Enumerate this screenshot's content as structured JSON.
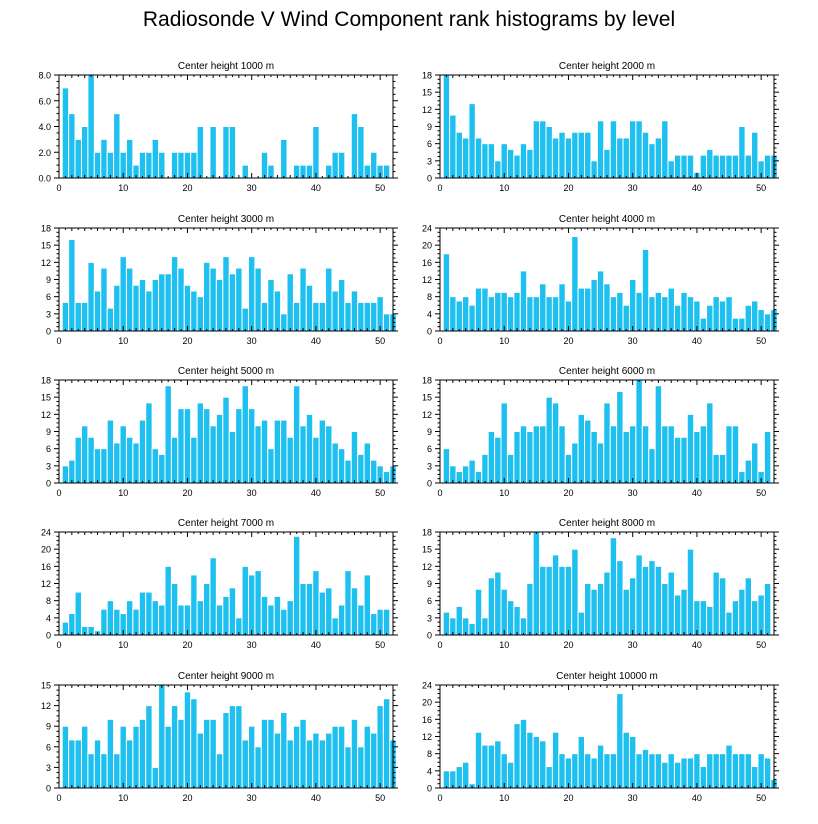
{
  "title": "Radiosonde V Wind Component rank histograms by level",
  "style": {
    "bar_color": "#1ec0f0",
    "bar_outline": "#ffffff",
    "axis_color": "#000000"
  },
  "chart_data": [
    {
      "type": "bar",
      "title": "Center height 1000 m",
      "xlim": [
        0,
        52
      ],
      "xticks": [
        0,
        10,
        20,
        30,
        40,
        50
      ],
      "ylim": [
        0,
        8
      ],
      "yticks": [
        0,
        2,
        4,
        6,
        8
      ],
      "ytick_labels": [
        "0.0",
        "2.0",
        "4.0",
        "6.0",
        "8.0"
      ],
      "values": [
        7,
        5,
        3,
        4,
        8,
        2,
        3,
        2,
        5,
        2,
        3,
        1,
        2,
        2,
        3,
        2,
        0,
        2,
        2,
        2,
        2,
        4,
        0,
        4,
        0,
        4,
        4,
        0,
        1,
        0,
        0,
        2,
        1,
        0,
        3,
        0,
        1,
        1,
        1,
        4,
        0,
        1,
        2,
        2,
        0,
        5,
        4,
        1,
        2,
        1,
        1
      ]
    },
    {
      "type": "bar",
      "title": "Center height 2000 m",
      "xlim": [
        0,
        52
      ],
      "xticks": [
        0,
        10,
        20,
        30,
        40,
        50
      ],
      "ylim": [
        0,
        18
      ],
      "yticks": [
        0,
        3,
        6,
        9,
        12,
        15,
        18
      ],
      "ytick_labels": [
        "0",
        "3",
        "6",
        "9",
        "12",
        "15",
        "18"
      ],
      "values": [
        18,
        11,
        8,
        7,
        13,
        7,
        6,
        6,
        3,
        6,
        5,
        4,
        6,
        5,
        10,
        10,
        9,
        7,
        8,
        7,
        8,
        8,
        8,
        3,
        10,
        5,
        10,
        7,
        7,
        10,
        10,
        8,
        6,
        7,
        10,
        3,
        4,
        4,
        4,
        1,
        4,
        5,
        4,
        4,
        4,
        4,
        9,
        4,
        8,
        3,
        4,
        4
      ]
    },
    {
      "type": "bar",
      "title": "Center height 3000 m",
      "xlim": [
        0,
        52
      ],
      "xticks": [
        0,
        10,
        20,
        30,
        40,
        50
      ],
      "ylim": [
        0,
        18
      ],
      "yticks": [
        0,
        3,
        6,
        9,
        12,
        15,
        18
      ],
      "ytick_labels": [
        "0",
        "3",
        "6",
        "9",
        "12",
        "15",
        "18"
      ],
      "values": [
        5,
        16,
        5,
        5,
        12,
        7,
        11,
        4,
        8,
        13,
        11,
        8,
        9,
        7,
        9,
        10,
        10,
        13,
        11,
        8,
        7,
        6,
        12,
        11,
        9,
        13,
        10,
        11,
        4,
        13,
        11,
        5,
        9,
        7,
        3,
        10,
        5,
        11,
        8,
        5,
        5,
        11,
        7,
        9,
        5,
        7,
        5,
        5,
        5,
        6,
        3,
        3
      ]
    },
    {
      "type": "bar",
      "title": "Center height 4000 m",
      "xlim": [
        0,
        52
      ],
      "xticks": [
        0,
        10,
        20,
        30,
        40,
        50
      ],
      "ylim": [
        0,
        24
      ],
      "yticks": [
        0,
        4,
        8,
        12,
        16,
        20,
        24
      ],
      "ytick_labels": [
        "0",
        "4",
        "8",
        "12",
        "16",
        "20",
        "24"
      ],
      "values": [
        18,
        8,
        7,
        8,
        6,
        10,
        10,
        8,
        9,
        9,
        8,
        9,
        14,
        8,
        8,
        11,
        8,
        8,
        11,
        7,
        22,
        10,
        10,
        12,
        14,
        11,
        8,
        9,
        6,
        12,
        9,
        19,
        8,
        9,
        8,
        10,
        6,
        9,
        8,
        7,
        3,
        6,
        8,
        7,
        8,
        3,
        3,
        6,
        7,
        5,
        4,
        5,
        4
      ]
    },
    {
      "type": "bar",
      "title": "Center height 5000 m",
      "xlim": [
        0,
        52
      ],
      "xticks": [
        0,
        10,
        20,
        30,
        40,
        50
      ],
      "ylim": [
        0,
        18
      ],
      "yticks": [
        0,
        3,
        6,
        9,
        12,
        15,
        18
      ],
      "ytick_labels": [
        "0",
        "3",
        "6",
        "9",
        "12",
        "15",
        "18"
      ],
      "values": [
        3,
        4,
        8,
        10,
        8,
        6,
        6,
        11,
        7,
        10,
        8,
        7,
        11,
        14,
        6,
        5,
        17,
        8,
        13,
        13,
        8,
        14,
        13,
        10,
        12,
        15,
        9,
        13,
        17,
        13,
        10,
        11,
        6,
        11,
        11,
        8,
        17,
        10,
        12,
        8,
        11,
        10,
        7,
        6,
        4,
        9,
        5,
        7,
        4,
        3,
        2,
        3
      ]
    },
    {
      "type": "bar",
      "title": "Center height 6000 m",
      "xlim": [
        0,
        52
      ],
      "xticks": [
        0,
        10,
        20,
        30,
        40,
        50
      ],
      "ylim": [
        0,
        18
      ],
      "yticks": [
        0,
        3,
        6,
        9,
        12,
        15,
        18
      ],
      "ytick_labels": [
        "0",
        "3",
        "6",
        "9",
        "12",
        "15",
        "18"
      ],
      "values": [
        6,
        3,
        2,
        3,
        4,
        2,
        5,
        9,
        8,
        14,
        5,
        9,
        10,
        9,
        10,
        10,
        15,
        14,
        10,
        5,
        7,
        12,
        11,
        9,
        7,
        14,
        10,
        16,
        9,
        10,
        18,
        10,
        6,
        17,
        10,
        10,
        8,
        8,
        12,
        9,
        10,
        14,
        5,
        5,
        10,
        10,
        2,
        4,
        7,
        2,
        9
      ]
    },
    {
      "type": "bar",
      "title": "Center height 7000 m",
      "xlim": [
        0,
        52
      ],
      "xticks": [
        0,
        10,
        20,
        30,
        40,
        50
      ],
      "ylim": [
        0,
        24
      ],
      "yticks": [
        0,
        4,
        8,
        12,
        16,
        20,
        24
      ],
      "ytick_labels": [
        "0",
        "4",
        "8",
        "12",
        "16",
        "20",
        "24"
      ],
      "values": [
        3,
        5,
        10,
        2,
        2,
        1,
        6,
        8,
        6,
        5,
        8,
        6,
        10,
        10,
        8,
        7,
        16,
        12,
        7,
        7,
        14,
        8,
        12,
        18,
        7,
        9,
        11,
        4,
        16,
        14,
        15,
        9,
        7,
        9,
        6,
        8,
        23,
        12,
        12,
        15,
        10,
        11,
        4,
        7,
        15,
        11,
        7,
        14,
        5,
        6,
        6
      ]
    },
    {
      "type": "bar",
      "title": "Center height 8000 m",
      "xlim": [
        0,
        52
      ],
      "xticks": [
        0,
        10,
        20,
        30,
        40,
        50
      ],
      "ylim": [
        0,
        18
      ],
      "yticks": [
        0,
        3,
        6,
        9,
        12,
        15,
        18
      ],
      "ytick_labels": [
        "0",
        "3",
        "6",
        "9",
        "12",
        "15",
        "18"
      ],
      "values": [
        4,
        3,
        5,
        3,
        2,
        8,
        3,
        10,
        11,
        8,
        6,
        5,
        3,
        9,
        18,
        12,
        12,
        14,
        12,
        12,
        15,
        4,
        9,
        8,
        9,
        11,
        17,
        13,
        8,
        10,
        14,
        12,
        13,
        12,
        9,
        11,
        7,
        8,
        15,
        6,
        6,
        5,
        11,
        10,
        4,
        6,
        8,
        10,
        6,
        7,
        9
      ]
    },
    {
      "type": "bar",
      "title": "Center height 9000 m",
      "xlim": [
        0,
        52
      ],
      "xticks": [
        0,
        10,
        20,
        30,
        40,
        50
      ],
      "ylim": [
        0,
        15
      ],
      "yticks": [
        0,
        3,
        6,
        9,
        12,
        15
      ],
      "ytick_labels": [
        "0",
        "3",
        "6",
        "9",
        "12",
        "15"
      ],
      "values": [
        9,
        7,
        7,
        9,
        5,
        7,
        5,
        10,
        5,
        9,
        7,
        9,
        10,
        12,
        3,
        15,
        9,
        12,
        10,
        14,
        13,
        8,
        10,
        10,
        5,
        11,
        12,
        12,
        7,
        9,
        6,
        10,
        10,
        8,
        11,
        7,
        9,
        10,
        7,
        8,
        7,
        8,
        9,
        9,
        6,
        10,
        6,
        9,
        8,
        12,
        13,
        7,
        7
      ]
    },
    {
      "type": "bar",
      "title": "Center height 10000 m",
      "xlim": [
        0,
        52
      ],
      "xticks": [
        0,
        10,
        20,
        30,
        40,
        50
      ],
      "ylim": [
        0,
        24
      ],
      "yticks": [
        0,
        4,
        8,
        12,
        16,
        20,
        24
      ],
      "ytick_labels": [
        "0",
        "4",
        "8",
        "12",
        "16",
        "20",
        "24"
      ],
      "values": [
        4,
        4,
        5,
        6,
        1,
        13,
        10,
        10,
        11,
        8,
        6,
        15,
        16,
        13,
        12,
        11,
        5,
        13,
        8,
        7,
        8,
        12,
        8,
        7,
        10,
        8,
        8,
        22,
        13,
        12,
        8,
        9,
        8,
        8,
        6,
        8,
        6,
        7,
        7,
        8,
        5,
        8,
        8,
        8,
        10,
        8,
        8,
        8,
        5,
        8,
        7,
        2
      ]
    }
  ]
}
